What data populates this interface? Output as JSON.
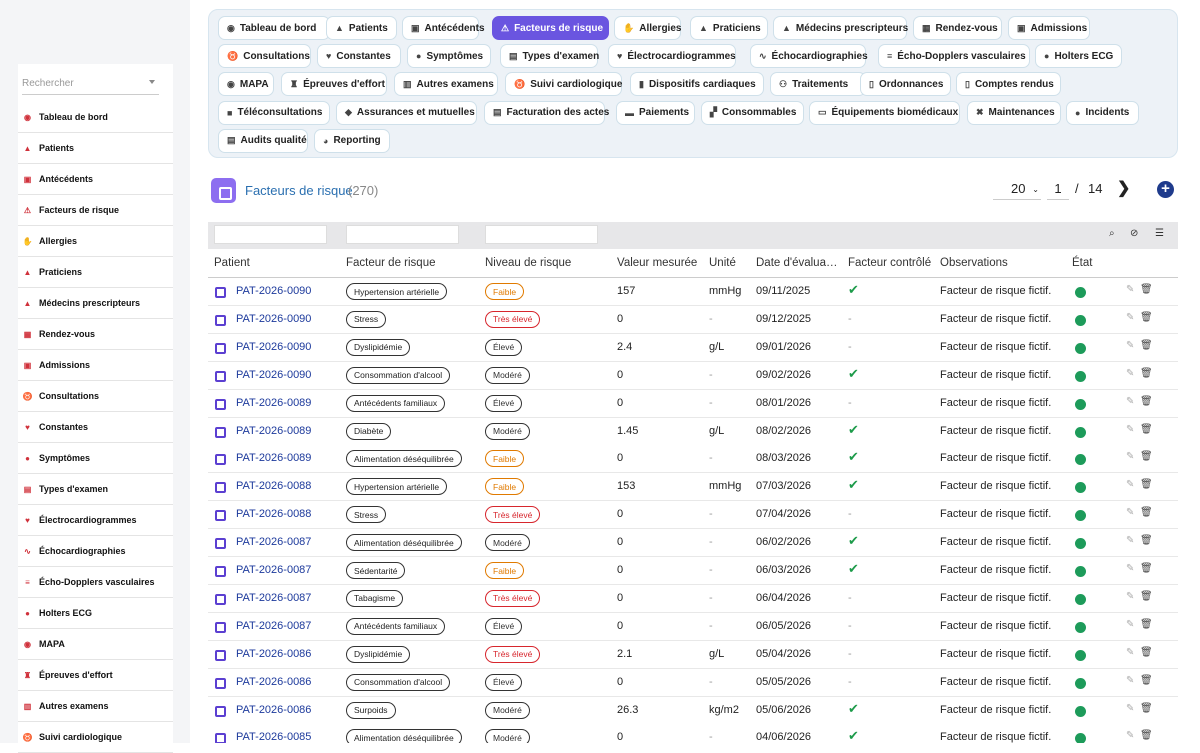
{
  "sidebar": {
    "search_placeholder": "Rechercher",
    "items": [
      {
        "label": "Tableau de bord",
        "icon": "dashboard-icon"
      },
      {
        "label": "Patients",
        "icon": "user-icon"
      },
      {
        "label": "Antécédents",
        "icon": "history-icon"
      },
      {
        "label": "Facteurs de risque",
        "icon": "warning-icon"
      },
      {
        "label": "Allergies",
        "icon": "hand-icon"
      },
      {
        "label": "Praticiens",
        "icon": "doctor-icon"
      },
      {
        "label": "Médecins prescripteurs",
        "icon": "doctor-icon"
      },
      {
        "label": "Rendez-vous",
        "icon": "calendar-icon"
      },
      {
        "label": "Admissions",
        "icon": "clipboard-icon"
      },
      {
        "label": "Consultations",
        "icon": "stethoscope-icon"
      },
      {
        "label": "Constantes",
        "icon": "heart-pulse-icon"
      },
      {
        "label": "Symptômes",
        "icon": "head-icon"
      },
      {
        "label": "Types d'examen",
        "icon": "list-icon"
      },
      {
        "label": "Électrocardiogrammes",
        "icon": "heart-pulse-icon"
      },
      {
        "label": "Échocardiographies",
        "icon": "wave-icon"
      },
      {
        "label": "Écho-Dopplers vasculaires",
        "icon": "lines-icon"
      },
      {
        "label": "Holters ECG",
        "icon": "alert-circle-icon"
      },
      {
        "label": "MAPA",
        "icon": "gauge-icon"
      },
      {
        "label": "Épreuves d'effort",
        "icon": "running-icon"
      },
      {
        "label": "Autres examens",
        "icon": "flask-icon"
      },
      {
        "label": "Suivi cardiologique",
        "icon": "stethoscope-icon"
      }
    ]
  },
  "tabs": [
    {
      "label": "Tableau de bord",
      "icon": "◉"
    },
    {
      "label": "Patients",
      "icon": "▲"
    },
    {
      "label": "Antécédents",
      "icon": "▣"
    },
    {
      "label": "Facteurs de risque",
      "icon": "⚠",
      "active": true
    },
    {
      "label": "Allergies",
      "icon": "✋"
    },
    {
      "label": "Praticiens",
      "icon": "▲"
    },
    {
      "label": "Médecins prescripteurs",
      "icon": "▲"
    },
    {
      "label": "Rendez-vous",
      "icon": "▦"
    },
    {
      "label": "Admissions",
      "icon": "▣"
    },
    {
      "label": "Consultations",
      "icon": "♉"
    },
    {
      "label": "Constantes",
      "icon": "♥"
    },
    {
      "label": "Symptômes",
      "icon": "●"
    },
    {
      "label": "Types d'examen",
      "icon": "▤"
    },
    {
      "label": "Électrocardiogrammes",
      "icon": "♥"
    },
    {
      "label": "Échocardiographies",
      "icon": "∿"
    },
    {
      "label": "Écho-Dopplers vasculaires",
      "icon": "≡"
    },
    {
      "label": "Holters ECG",
      "icon": "●"
    },
    {
      "label": "MAPA",
      "icon": "◉"
    },
    {
      "label": "Épreuves d'effort",
      "icon": "♜"
    },
    {
      "label": "Autres examens",
      "icon": "▥"
    },
    {
      "label": "Suivi cardiologique",
      "icon": "♉"
    },
    {
      "label": "Dispositifs cardiaques",
      "icon": "▮"
    },
    {
      "label": "Traitements",
      "icon": "⚇"
    },
    {
      "label": "Ordonnances",
      "icon": "▯"
    },
    {
      "label": "Comptes rendus",
      "icon": "▯"
    },
    {
      "label": "Téléconsultations",
      "icon": "■"
    },
    {
      "label": "Assurances et mutuelles",
      "icon": "◆"
    },
    {
      "label": "Facturation des actes",
      "icon": "▤"
    },
    {
      "label": "Paiements",
      "icon": "▬"
    },
    {
      "label": "Consommables",
      "icon": "▞"
    },
    {
      "label": "Équipements biomédicaux",
      "icon": "▭"
    },
    {
      "label": "Maintenances",
      "icon": "✖"
    },
    {
      "label": "Incidents",
      "icon": "●"
    },
    {
      "label": "Audits qualité",
      "icon": "▤"
    },
    {
      "label": "Reporting",
      "icon": "◕"
    }
  ],
  "header": {
    "title": "Facteurs de risque",
    "count": "(270)"
  },
  "pagination": {
    "page_size": "20",
    "current_page": "1",
    "separator": "/",
    "total_pages": "14",
    "next": "❯",
    "add": "+"
  },
  "columns": [
    "Patient",
    "Facteur de risque",
    "Niveau de risque",
    "Valeur mesurée",
    "Unité",
    "Date d'évalua…",
    "Facteur contrôlé",
    "Observations",
    "État"
  ],
  "rows": [
    {
      "patient": "PAT-2026-0090",
      "factor": "Hypertension artérielle",
      "level": "Faible",
      "level_class": "low",
      "value": "157",
      "unit": "mmHg",
      "date": "09/11/2025",
      "controlled": true,
      "obs": "Facteur de risque fictif."
    },
    {
      "patient": "PAT-2026-0090",
      "factor": "Stress",
      "level": "Très élevé",
      "level_class": "high",
      "value": "0",
      "unit": "-",
      "date": "09/12/2025",
      "controlled": false,
      "obs": "Facteur de risque fictif."
    },
    {
      "patient": "PAT-2026-0090",
      "factor": "Dyslipidémie",
      "level": "Élevé",
      "level_class": "elev",
      "value": "2.4",
      "unit": "g/L",
      "date": "09/01/2026",
      "controlled": false,
      "obs": "Facteur de risque fictif."
    },
    {
      "patient": "PAT-2026-0090",
      "factor": "Consommation d'alcool",
      "level": "Modéré",
      "level_class": "mod",
      "value": "0",
      "unit": "-",
      "date": "09/02/2026",
      "controlled": true,
      "obs": "Facteur de risque fictif."
    },
    {
      "patient": "PAT-2026-0089",
      "factor": "Antécédents familiaux",
      "level": "Élevé",
      "level_class": "elev",
      "value": "0",
      "unit": "-",
      "date": "08/01/2026",
      "controlled": false,
      "obs": "Facteur de risque fictif."
    },
    {
      "patient": "PAT-2026-0089",
      "factor": "Diabète",
      "level": "Modéré",
      "level_class": "mod",
      "value": "1.45",
      "unit": "g/L",
      "date": "08/02/2026",
      "controlled": true,
      "obs": "Facteur de risque fictif."
    },
    {
      "patient": "PAT-2026-0089",
      "factor": "Alimentation déséquilibrée",
      "level": "Faible",
      "level_class": "low",
      "value": "0",
      "unit": "-",
      "date": "08/03/2026",
      "controlled": true,
      "obs": "Facteur de risque fictif."
    },
    {
      "patient": "PAT-2026-0088",
      "factor": "Hypertension artérielle",
      "level": "Faible",
      "level_class": "low",
      "value": "153",
      "unit": "mmHg",
      "date": "07/03/2026",
      "controlled": true,
      "obs": "Facteur de risque fictif."
    },
    {
      "patient": "PAT-2026-0088",
      "factor": "Stress",
      "level": "Très élevé",
      "level_class": "high",
      "value": "0",
      "unit": "-",
      "date": "07/04/2026",
      "controlled": false,
      "obs": "Facteur de risque fictif."
    },
    {
      "patient": "PAT-2026-0087",
      "factor": "Alimentation déséquilibrée",
      "level": "Modéré",
      "level_class": "mod",
      "value": "0",
      "unit": "-",
      "date": "06/02/2026",
      "controlled": true,
      "obs": "Facteur de risque fictif."
    },
    {
      "patient": "PAT-2026-0087",
      "factor": "Sédentarité",
      "level": "Faible",
      "level_class": "low",
      "value": "0",
      "unit": "-",
      "date": "06/03/2026",
      "controlled": true,
      "obs": "Facteur de risque fictif."
    },
    {
      "patient": "PAT-2026-0087",
      "factor": "Tabagisme",
      "level": "Très élevé",
      "level_class": "high",
      "value": "0",
      "unit": "-",
      "date": "06/04/2026",
      "controlled": false,
      "obs": "Facteur de risque fictif."
    },
    {
      "patient": "PAT-2026-0087",
      "factor": "Antécédents familiaux",
      "level": "Élevé",
      "level_class": "elev",
      "value": "0",
      "unit": "-",
      "date": "06/05/2026",
      "controlled": false,
      "obs": "Facteur de risque fictif."
    },
    {
      "patient": "PAT-2026-0086",
      "factor": "Dyslipidémie",
      "level": "Très élevé",
      "level_class": "high",
      "value": "2.1",
      "unit": "g/L",
      "date": "05/04/2026",
      "controlled": false,
      "obs": "Facteur de risque fictif."
    },
    {
      "patient": "PAT-2026-0086",
      "factor": "Consommation d'alcool",
      "level": "Élevé",
      "level_class": "elev",
      "value": "0",
      "unit": "-",
      "date": "05/05/2026",
      "controlled": false,
      "obs": "Facteur de risque fictif."
    },
    {
      "patient": "PAT-2026-0086",
      "factor": "Surpoids",
      "level": "Modéré",
      "level_class": "mod",
      "value": "26.3",
      "unit": "kg/m2",
      "date": "05/06/2026",
      "controlled": true,
      "obs": "Facteur de risque fictif."
    },
    {
      "patient": "PAT-2026-0085",
      "factor": "Alimentation déséquilibrée",
      "level": "Modéré",
      "level_class": "mod",
      "value": "0",
      "unit": "-",
      "date": "04/06/2026",
      "controlled": true,
      "obs": "Facteur de risque fictif."
    }
  ],
  "icons": {
    "edit": "✎",
    "delete": "🗑",
    "check": "✔",
    "dash": "-",
    "search": "⌕",
    "clear-filter": "⊘",
    "columns": "☰"
  }
}
